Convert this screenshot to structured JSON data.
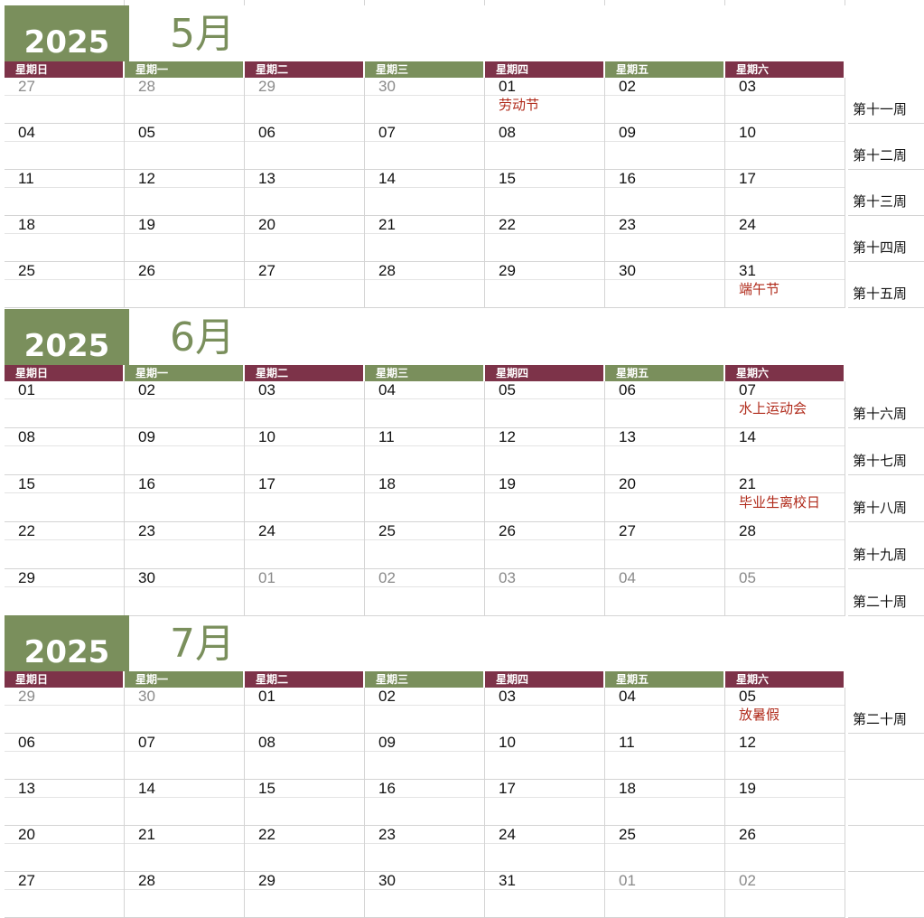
{
  "weekday_headers": [
    "星期日",
    "星期一",
    "星期二",
    "星期三",
    "星期四",
    "星期五",
    "星期六"
  ],
  "months": [
    {
      "year": "2025",
      "title": "5月",
      "weeks": [
        {
          "days": [
            {
              "d": "27",
              "o": true
            },
            {
              "d": "28",
              "o": true
            },
            {
              "d": "29",
              "o": true
            },
            {
              "d": "30",
              "o": true
            },
            {
              "d": "01",
              "n": "劳动节"
            },
            {
              "d": "02"
            },
            {
              "d": "03"
            }
          ],
          "label": "第十一周"
        },
        {
          "days": [
            {
              "d": "04"
            },
            {
              "d": "05"
            },
            {
              "d": "06"
            },
            {
              "d": "07"
            },
            {
              "d": "08"
            },
            {
              "d": "09"
            },
            {
              "d": "10"
            }
          ],
          "label": "第十二周"
        },
        {
          "days": [
            {
              "d": "11"
            },
            {
              "d": "12"
            },
            {
              "d": "13"
            },
            {
              "d": "14"
            },
            {
              "d": "15"
            },
            {
              "d": "16"
            },
            {
              "d": "17"
            }
          ],
          "label": "第十三周"
        },
        {
          "days": [
            {
              "d": "18"
            },
            {
              "d": "19"
            },
            {
              "d": "20"
            },
            {
              "d": "21"
            },
            {
              "d": "22"
            },
            {
              "d": "23"
            },
            {
              "d": "24"
            }
          ],
          "label": "第十四周"
        },
        {
          "days": [
            {
              "d": "25"
            },
            {
              "d": "26"
            },
            {
              "d": "27"
            },
            {
              "d": "28"
            },
            {
              "d": "29"
            },
            {
              "d": "30"
            },
            {
              "d": "31",
              "n": "端午节"
            }
          ],
          "label": "第十五周"
        }
      ]
    },
    {
      "year": "2025",
      "title": "6月",
      "weeks": [
        {
          "days": [
            {
              "d": "01"
            },
            {
              "d": "02"
            },
            {
              "d": "03"
            },
            {
              "d": "04"
            },
            {
              "d": "05"
            },
            {
              "d": "06"
            },
            {
              "d": "07",
              "n": "水上运动会"
            }
          ],
          "label": "第十六周"
        },
        {
          "days": [
            {
              "d": "08"
            },
            {
              "d": "09"
            },
            {
              "d": "10"
            },
            {
              "d": "11"
            },
            {
              "d": "12"
            },
            {
              "d": "13"
            },
            {
              "d": "14"
            }
          ],
          "label": "第十七周"
        },
        {
          "days": [
            {
              "d": "15"
            },
            {
              "d": "16"
            },
            {
              "d": "17"
            },
            {
              "d": "18"
            },
            {
              "d": "19"
            },
            {
              "d": "20"
            },
            {
              "d": "21",
              "n": "毕业生离校日"
            }
          ],
          "label": "第十八周"
        },
        {
          "days": [
            {
              "d": "22"
            },
            {
              "d": "23"
            },
            {
              "d": "24"
            },
            {
              "d": "25"
            },
            {
              "d": "26"
            },
            {
              "d": "27"
            },
            {
              "d": "28"
            }
          ],
          "label": "第十九周"
        },
        {
          "days": [
            {
              "d": "29"
            },
            {
              "d": "30"
            },
            {
              "d": "01",
              "o": true
            },
            {
              "d": "02",
              "o": true
            },
            {
              "d": "03",
              "o": true
            },
            {
              "d": "04",
              "o": true
            },
            {
              "d": "05",
              "o": true
            }
          ],
          "label": "第二十周"
        }
      ]
    },
    {
      "year": "2025",
      "title": "7月",
      "weeks": [
        {
          "days": [
            {
              "d": "29",
              "o": true
            },
            {
              "d": "30",
              "o": true
            },
            {
              "d": "01"
            },
            {
              "d": "02"
            },
            {
              "d": "03"
            },
            {
              "d": "04"
            },
            {
              "d": "05",
              "n": "放暑假"
            }
          ],
          "label": "第二十周"
        },
        {
          "days": [
            {
              "d": "06"
            },
            {
              "d": "07"
            },
            {
              "d": "08"
            },
            {
              "d": "09"
            },
            {
              "d": "10"
            },
            {
              "d": "11"
            },
            {
              "d": "12"
            }
          ],
          "label": ""
        },
        {
          "days": [
            {
              "d": "13"
            },
            {
              "d": "14"
            },
            {
              "d": "15"
            },
            {
              "d": "16"
            },
            {
              "d": "17"
            },
            {
              "d": "18"
            },
            {
              "d": "19"
            }
          ],
          "label": ""
        },
        {
          "days": [
            {
              "d": "20"
            },
            {
              "d": "21"
            },
            {
              "d": "22"
            },
            {
              "d": "23"
            },
            {
              "d": "24"
            },
            {
              "d": "25"
            },
            {
              "d": "26"
            }
          ],
          "label": ""
        },
        {
          "days": [
            {
              "d": "27"
            },
            {
              "d": "28"
            },
            {
              "d": "29"
            },
            {
              "d": "30"
            },
            {
              "d": "31"
            },
            {
              "d": "01",
              "o": true
            },
            {
              "d": "02",
              "o": true
            }
          ],
          "label": ""
        }
      ]
    }
  ]
}
